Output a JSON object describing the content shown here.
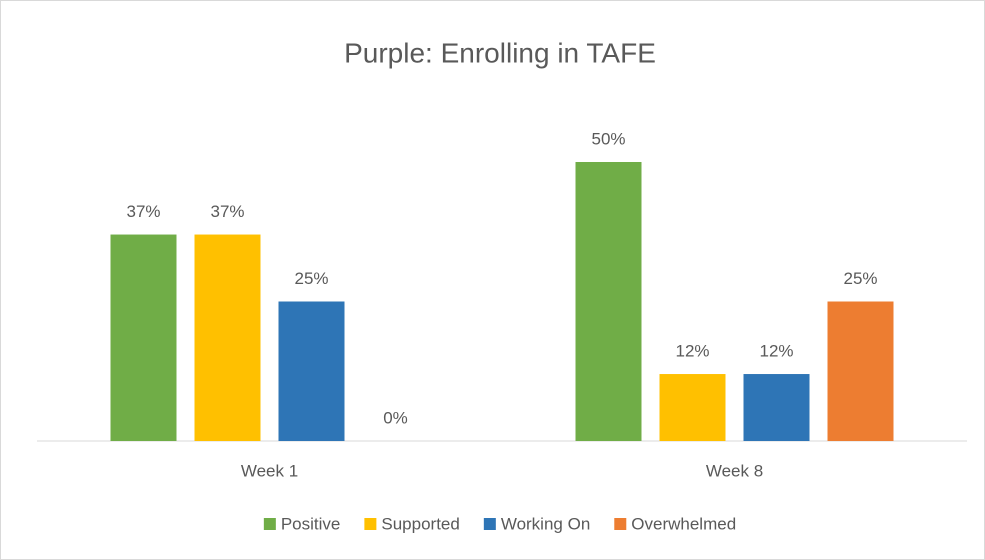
{
  "chart_data": {
    "type": "bar",
    "title": "Purple: Enrolling in TAFE",
    "categories": [
      "Week 1",
      "Week 8"
    ],
    "series": [
      {
        "name": "Positive",
        "color": "#70ad47",
        "values": [
          37,
          50
        ],
        "value_labels": [
          "37%",
          "50%"
        ]
      },
      {
        "name": "Supported",
        "color": "#ffc000",
        "values": [
          37,
          12
        ],
        "value_labels": [
          "37%",
          "12%"
        ]
      },
      {
        "name": "Working On",
        "color": "#2e75b6",
        "values": [
          25,
          12
        ],
        "value_labels": [
          "25%",
          "12%"
        ]
      },
      {
        "name": "Overwhelmed",
        "color": "#ed7d31",
        "values": [
          0,
          25
        ],
        "value_labels": [
          "0%",
          "25%"
        ]
      }
    ],
    "legend": "bottom"
  }
}
